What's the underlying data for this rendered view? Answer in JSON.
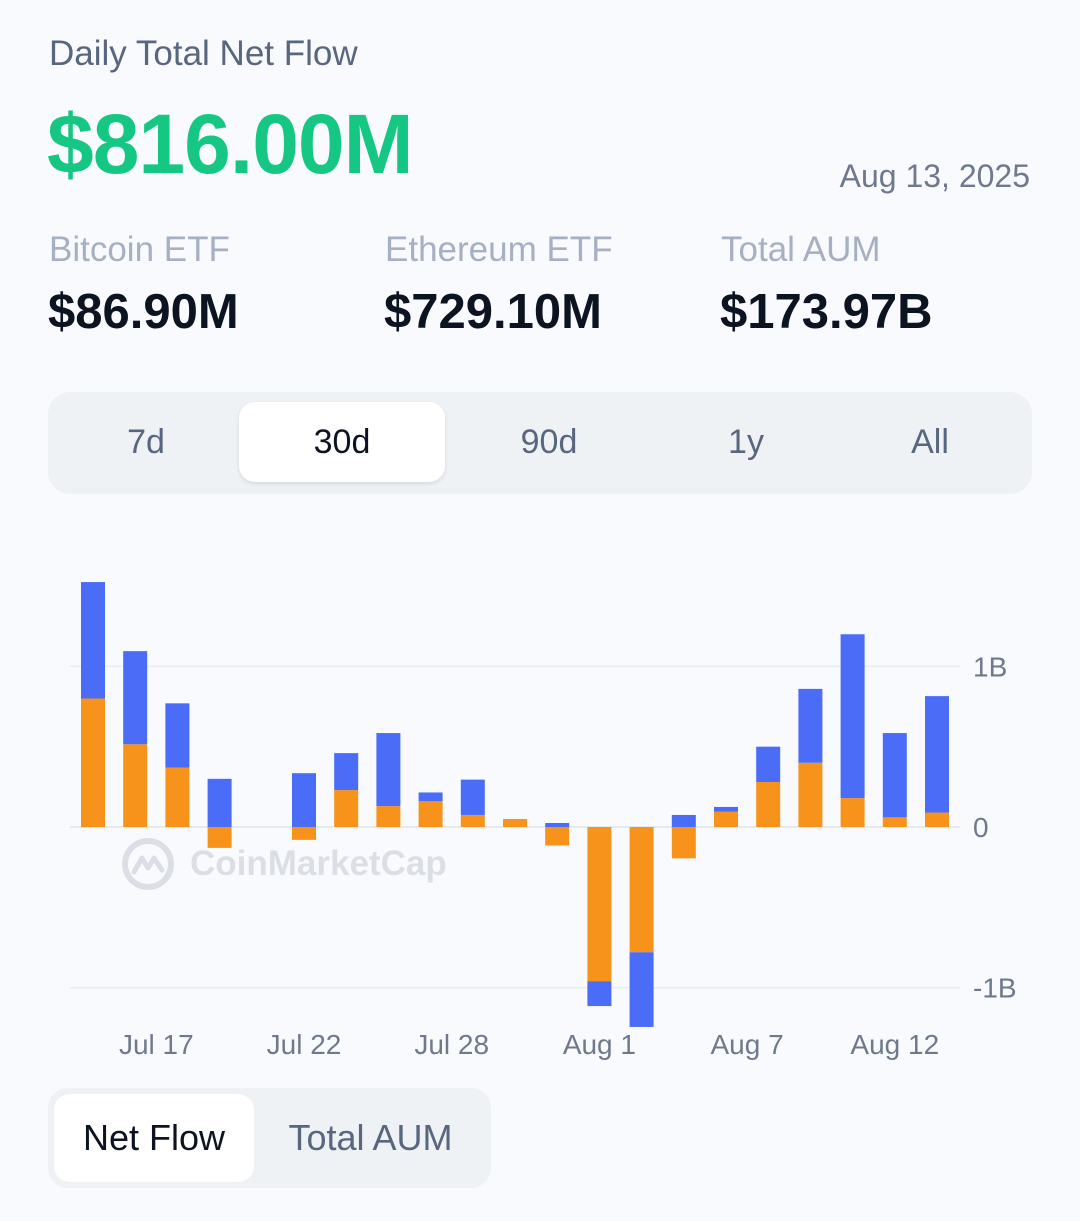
{
  "header": {
    "title": "Daily Total Net Flow",
    "value": "$816.00M",
    "date": "Aug 13, 2025"
  },
  "stats": [
    {
      "label": "Bitcoin ETF",
      "value": "$86.90M"
    },
    {
      "label": "Ethereum ETF",
      "value": "$729.10M"
    },
    {
      "label": "Total AUM",
      "value": "$173.97B"
    }
  ],
  "range_tabs": [
    {
      "label": "7d",
      "active": false
    },
    {
      "label": "30d",
      "active": true
    },
    {
      "label": "90d",
      "active": false
    },
    {
      "label": "1y",
      "active": false
    },
    {
      "label": "All",
      "active": false
    }
  ],
  "mode_tabs": [
    {
      "label": "Net Flow",
      "active": true
    },
    {
      "label": "Total AUM",
      "active": false
    }
  ],
  "watermark": "CoinMarketCap",
  "colors": {
    "accent": "#16c784",
    "btc": "#f7931a",
    "eth": "#4a6cf7"
  },
  "chart_data": {
    "type": "bar",
    "stacked": true,
    "y_tick_labels": [
      "1B",
      "0",
      "-1B"
    ],
    "y_ticks": [
      1000,
      0,
      -1000
    ],
    "ylim": [
      -1000,
      1530
    ],
    "x_tick_labels": [
      "Jul 17",
      "Jul 22",
      "Jul 28",
      "Aug 1",
      "Aug 7",
      "Aug 12"
    ],
    "x_tick_positions": [
      1.5,
      5,
      8.5,
      12,
      15.5,
      19
    ],
    "grid": true,
    "legend": "none",
    "series": [
      {
        "color": "#f7931a",
        "values": [
          800,
          515,
          370,
          -130,
          0,
          -80,
          230,
          130,
          160,
          75,
          50,
          -115,
          -960,
          -780,
          -195,
          95,
          280,
          400,
          180,
          60,
          90
        ]
      },
      {
        "color": "#4a6cf7",
        "values": [
          725,
          580,
          400,
          300,
          0,
          335,
          230,
          455,
          55,
          220,
          0,
          25,
          -155,
          -465,
          75,
          30,
          220,
          460,
          1020,
          525,
          725
        ]
      }
    ]
  }
}
